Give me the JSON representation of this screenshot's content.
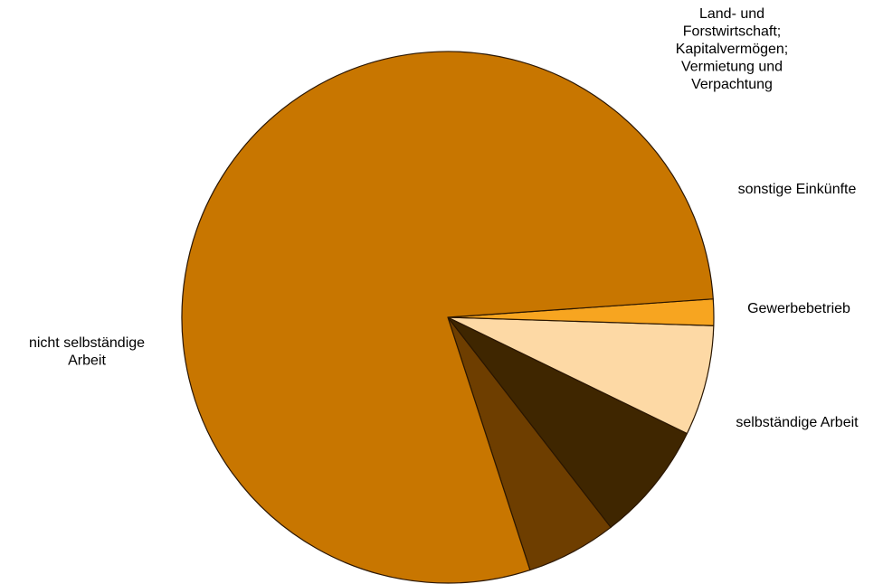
{
  "chart_data": {
    "type": "pie",
    "title": "",
    "start_angle_deg": 288,
    "direction": "counterclockwise",
    "slices": [
      {
        "label": "selbständige Arbeit",
        "value": 5.5,
        "color": "#6e3e00"
      },
      {
        "label": "Gewerbebetrieb",
        "value": 7.3,
        "color": "#3f2600"
      },
      {
        "label": "sonstige Einkünfte",
        "value": 6.7,
        "color": "#fdd9a5"
      },
      {
        "label": "Land- und Forstwirtschaft; Kapitalvermögen; Vermietung und Verpachtung",
        "value": 1.6,
        "color": "#f7a520"
      },
      {
        "label": "nicht selbständige Arbeit",
        "value": 78.9,
        "color": "#c87600"
      }
    ],
    "labels": [
      {
        "lines": [
          "selbständige Arbeit"
        ]
      },
      {
        "lines": [
          "Gewerbebetrieb"
        ]
      },
      {
        "lines": [
          "sonstige Einkünfte"
        ]
      },
      {
        "lines": [
          "Land- und",
          "Forstwirtschaft;",
          "Kapitalvermögen;",
          "Vermietung und",
          "Verpachtung"
        ]
      },
      {
        "lines": [
          "nicht selbständige",
          "Arbeit"
        ]
      }
    ]
  }
}
